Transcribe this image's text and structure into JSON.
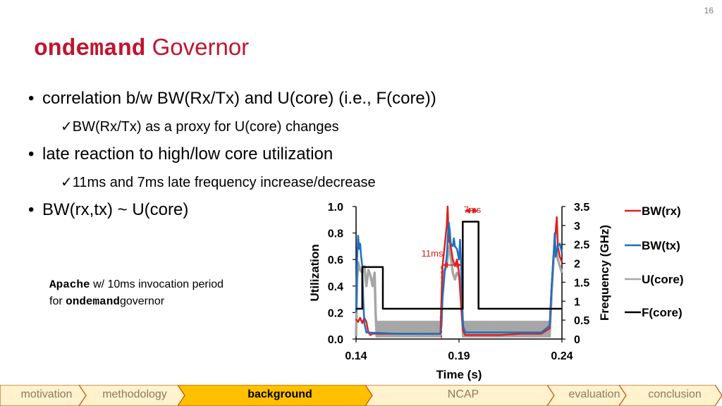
{
  "page_number": "16",
  "title": {
    "mono_part": "ondemand",
    "rest": "Governor",
    "color": "#c0152f"
  },
  "bullets": [
    {
      "dot": "•",
      "text": "correlation b/w BW(Rx/Tx) and U(core) (i.e., F(core))",
      "sub": {
        "mark": "✓",
        "text": "BW(Rx/Tx) as a proxy for U(core) changes"
      }
    },
    {
      "dot": "•",
      "text": "late reaction to high/low core utilization",
      "sub": {
        "mark": "✓",
        "text": "11ms and 7ms late frequency increase/decrease"
      }
    },
    {
      "dot": "•",
      "text": "BW(rx,tx) ~ U(core)"
    }
  ],
  "note": {
    "line1_mono": "Apache",
    "line1_rest": "w/ 10ms invocation period",
    "line2_pre": "for",
    "line2_mono": "ondemand",
    "line2_post": "governor"
  },
  "chart_data": {
    "type": "line",
    "xlabel": "Time (s)",
    "ylabel_left": "Utilization",
    "ylabel_right": "Frequency (GHz)",
    "xlim": [
      0.14,
      0.24
    ],
    "x_ticks": [
      "0.14",
      "0.19",
      "0.24"
    ],
    "ylim_left": [
      0,
      1.0
    ],
    "y_ticks_left": [
      "0.0",
      "0.2",
      "0.4",
      "0.6",
      "0.8",
      "1.0"
    ],
    "ylim_right": [
      0,
      3.5
    ],
    "y_ticks_right": [
      "0",
      "0.5",
      "1",
      "1.5",
      "2",
      "2.5",
      "3",
      "3.5"
    ],
    "annotations": [
      {
        "text": "11ms",
        "color": "#e0201b",
        "from_x": 0.1815,
        "to_x": 0.1918
      },
      {
        "text": "7ms",
        "color": "#e0201b",
        "from_x": 0.1925,
        "to_x": 0.1995
      }
    ],
    "series": [
      {
        "name": "BW(rx)",
        "color": "#e0201b",
        "axis": "left",
        "points": [
          [
            0.14,
            0.15
          ],
          [
            0.141,
            0.13
          ],
          [
            0.142,
            0.16
          ],
          [
            0.143,
            0.12
          ],
          [
            0.144,
            0.16
          ],
          [
            0.145,
            0.13
          ],
          [
            0.146,
            0.05
          ],
          [
            0.147,
            0.03
          ],
          [
            0.148,
            0.04
          ],
          [
            0.16,
            0.04
          ],
          [
            0.17,
            0.04
          ],
          [
            0.181,
            0.04
          ],
          [
            0.1815,
            0.3
          ],
          [
            0.182,
            0.55
          ],
          [
            0.183,
            0.7
          ],
          [
            0.184,
            0.85
          ],
          [
            0.1845,
            1.0
          ],
          [
            0.185,
            0.75
          ],
          [
            0.186,
            0.7
          ],
          [
            0.187,
            0.6
          ],
          [
            0.188,
            0.55
          ],
          [
            0.189,
            0.6
          ],
          [
            0.19,
            0.5
          ],
          [
            0.191,
            0.25
          ],
          [
            0.192,
            0.06
          ],
          [
            0.193,
            0.03
          ],
          [
            0.2,
            0.03
          ],
          [
            0.21,
            0.03
          ],
          [
            0.22,
            0.04
          ],
          [
            0.23,
            0.04
          ],
          [
            0.234,
            0.08
          ],
          [
            0.235,
            0.4
          ],
          [
            0.236,
            0.65
          ],
          [
            0.237,
            0.82
          ],
          [
            0.2375,
            0.92
          ],
          [
            0.238,
            0.7
          ],
          [
            0.239,
            0.62
          ],
          [
            0.24,
            0.58
          ]
        ]
      },
      {
        "name": "BW(tx)",
        "color": "#1f6fbf",
        "axis": "left",
        "points": [
          [
            0.14,
            0.2
          ],
          [
            0.1405,
            0.6
          ],
          [
            0.141,
            0.78
          ],
          [
            0.1415,
            0.68
          ],
          [
            0.142,
            0.72
          ],
          [
            0.1425,
            0.62
          ],
          [
            0.143,
            0.55
          ],
          [
            0.1435,
            0.3
          ],
          [
            0.144,
            0.12
          ],
          [
            0.145,
            0.05
          ],
          [
            0.16,
            0.04
          ],
          [
            0.17,
            0.04
          ],
          [
            0.181,
            0.04
          ],
          [
            0.1815,
            0.1
          ],
          [
            0.182,
            0.3
          ],
          [
            0.183,
            0.5
          ],
          [
            0.184,
            0.62
          ],
          [
            0.185,
            0.88
          ],
          [
            0.1855,
            0.82
          ],
          [
            0.186,
            0.72
          ],
          [
            0.187,
            0.7
          ],
          [
            0.1875,
            0.76
          ],
          [
            0.188,
            0.7
          ],
          [
            0.189,
            0.68
          ],
          [
            0.19,
            0.6
          ],
          [
            0.1905,
            0.75
          ],
          [
            0.191,
            0.56
          ],
          [
            0.1915,
            0.3
          ],
          [
            0.192,
            0.1
          ],
          [
            0.193,
            0.05
          ],
          [
            0.2,
            0.05
          ],
          [
            0.21,
            0.05
          ],
          [
            0.22,
            0.05
          ],
          [
            0.23,
            0.05
          ],
          [
            0.234,
            0.1
          ],
          [
            0.235,
            0.4
          ],
          [
            0.236,
            0.65
          ],
          [
            0.2365,
            0.8
          ],
          [
            0.237,
            0.62
          ],
          [
            0.238,
            0.7
          ],
          [
            0.239,
            0.72
          ],
          [
            0.24,
            0.65
          ]
        ]
      },
      {
        "name": "U(core)",
        "color": "#a6a6a6",
        "axis": "left",
        "points": [
          [
            0.14,
            0.02
          ],
          [
            0.1405,
            0.45
          ],
          [
            0.141,
            0.58
          ],
          [
            0.142,
            0.52
          ],
          [
            0.143,
            0.5
          ],
          [
            0.144,
            0.55
          ],
          [
            0.145,
            0.4
          ],
          [
            0.146,
            0.52
          ],
          [
            0.147,
            0.48
          ],
          [
            0.148,
            0.4
          ],
          [
            0.149,
            0.5
          ],
          [
            0.1495,
            0.2
          ],
          [
            0.15,
            0.02
          ],
          [
            0.1505,
            0.13
          ],
          [
            0.151,
            0.02
          ],
          [
            0.1515,
            0.13
          ],
          [
            0.152,
            0.02
          ],
          [
            0.1525,
            0.13
          ],
          [
            0.153,
            0.02
          ],
          [
            0.1535,
            0.13
          ],
          [
            0.154,
            0.02
          ],
          [
            0.1545,
            0.13
          ],
          [
            0.155,
            0.02
          ],
          [
            0.1555,
            0.13
          ],
          [
            0.156,
            0.02
          ],
          [
            0.1565,
            0.13
          ],
          [
            0.157,
            0.02
          ],
          [
            0.1575,
            0.13
          ],
          [
            0.158,
            0.02
          ],
          [
            0.1585,
            0.13
          ],
          [
            0.159,
            0.02
          ],
          [
            0.1595,
            0.13
          ],
          [
            0.16,
            0.02
          ],
          [
            0.1605,
            0.13
          ],
          [
            0.161,
            0.02
          ],
          [
            0.1615,
            0.13
          ],
          [
            0.162,
            0.02
          ],
          [
            0.1625,
            0.13
          ],
          [
            0.163,
            0.02
          ],
          [
            0.1635,
            0.13
          ],
          [
            0.164,
            0.02
          ],
          [
            0.1645,
            0.13
          ],
          [
            0.165,
            0.02
          ],
          [
            0.1655,
            0.13
          ],
          [
            0.166,
            0.02
          ],
          [
            0.1665,
            0.13
          ],
          [
            0.167,
            0.02
          ],
          [
            0.1675,
            0.13
          ],
          [
            0.168,
            0.02
          ],
          [
            0.1685,
            0.13
          ],
          [
            0.169,
            0.02
          ],
          [
            0.1695,
            0.13
          ],
          [
            0.17,
            0.02
          ],
          [
            0.1705,
            0.13
          ],
          [
            0.171,
            0.02
          ],
          [
            0.1715,
            0.13
          ],
          [
            0.172,
            0.02
          ],
          [
            0.1725,
            0.13
          ],
          [
            0.173,
            0.02
          ],
          [
            0.1735,
            0.13
          ],
          [
            0.174,
            0.02
          ],
          [
            0.1745,
            0.13
          ],
          [
            0.175,
            0.02
          ],
          [
            0.1755,
            0.13
          ],
          [
            0.176,
            0.02
          ],
          [
            0.1765,
            0.13
          ],
          [
            0.177,
            0.02
          ],
          [
            0.1775,
            0.13
          ],
          [
            0.178,
            0.02
          ],
          [
            0.1785,
            0.13
          ],
          [
            0.179,
            0.02
          ],
          [
            0.1795,
            0.13
          ],
          [
            0.18,
            0.02
          ],
          [
            0.1805,
            0.13
          ],
          [
            0.181,
            0.02
          ],
          [
            0.1815,
            0.25
          ],
          [
            0.182,
            0.45
          ],
          [
            0.183,
            0.52
          ],
          [
            0.184,
            0.55
          ],
          [
            0.185,
            0.7
          ],
          [
            0.186,
            0.62
          ],
          [
            0.187,
            0.5
          ],
          [
            0.188,
            0.45
          ],
          [
            0.189,
            0.5
          ],
          [
            0.19,
            0.48
          ],
          [
            0.191,
            0.4
          ],
          [
            0.1915,
            0.2
          ],
          [
            0.192,
            0.02
          ],
          [
            0.1925,
            0.13
          ],
          [
            0.193,
            0.02
          ],
          [
            0.1935,
            0.13
          ],
          [
            0.194,
            0.02
          ],
          [
            0.1945,
            0.13
          ],
          [
            0.195,
            0.02
          ],
          [
            0.1955,
            0.13
          ],
          [
            0.196,
            0.02
          ],
          [
            0.1965,
            0.13
          ],
          [
            0.197,
            0.02
          ],
          [
            0.1975,
            0.13
          ],
          [
            0.198,
            0.02
          ],
          [
            0.1985,
            0.13
          ],
          [
            0.199,
            0.02
          ],
          [
            0.1995,
            0.13
          ],
          [
            0.2,
            0.02
          ],
          [
            0.2005,
            0.13
          ],
          [
            0.201,
            0.02
          ],
          [
            0.2015,
            0.13
          ],
          [
            0.202,
            0.02
          ],
          [
            0.2025,
            0.13
          ],
          [
            0.203,
            0.02
          ],
          [
            0.2035,
            0.13
          ],
          [
            0.204,
            0.02
          ],
          [
            0.2045,
            0.13
          ],
          [
            0.205,
            0.02
          ],
          [
            0.2055,
            0.13
          ],
          [
            0.206,
            0.02
          ],
          [
            0.2065,
            0.13
          ],
          [
            0.207,
            0.02
          ],
          [
            0.2075,
            0.13
          ],
          [
            0.208,
            0.02
          ],
          [
            0.2085,
            0.13
          ],
          [
            0.209,
            0.02
          ],
          [
            0.2095,
            0.13
          ],
          [
            0.21,
            0.02
          ],
          [
            0.2105,
            0.13
          ],
          [
            0.211,
            0.02
          ],
          [
            0.2115,
            0.13
          ],
          [
            0.212,
            0.02
          ],
          [
            0.2125,
            0.13
          ],
          [
            0.213,
            0.02
          ],
          [
            0.2135,
            0.13
          ],
          [
            0.214,
            0.02
          ],
          [
            0.2145,
            0.13
          ],
          [
            0.215,
            0.02
          ],
          [
            0.2155,
            0.13
          ],
          [
            0.216,
            0.02
          ],
          [
            0.2165,
            0.13
          ],
          [
            0.217,
            0.02
          ],
          [
            0.2175,
            0.13
          ],
          [
            0.218,
            0.02
          ],
          [
            0.2185,
            0.13
          ],
          [
            0.219,
            0.02
          ],
          [
            0.2195,
            0.13
          ],
          [
            0.22,
            0.02
          ],
          [
            0.2205,
            0.13
          ],
          [
            0.221,
            0.02
          ],
          [
            0.2215,
            0.13
          ],
          [
            0.222,
            0.02
          ],
          [
            0.2225,
            0.13
          ],
          [
            0.223,
            0.02
          ],
          [
            0.2235,
            0.13
          ],
          [
            0.224,
            0.02
          ],
          [
            0.2245,
            0.13
          ],
          [
            0.225,
            0.02
          ],
          [
            0.2255,
            0.13
          ],
          [
            0.226,
            0.02
          ],
          [
            0.2265,
            0.13
          ],
          [
            0.227,
            0.02
          ],
          [
            0.2275,
            0.13
          ],
          [
            0.228,
            0.02
          ],
          [
            0.2285,
            0.13
          ],
          [
            0.229,
            0.02
          ],
          [
            0.2295,
            0.13
          ],
          [
            0.23,
            0.02
          ],
          [
            0.2305,
            0.13
          ],
          [
            0.231,
            0.02
          ],
          [
            0.2315,
            0.13
          ],
          [
            0.232,
            0.02
          ],
          [
            0.2325,
            0.13
          ],
          [
            0.233,
            0.02
          ],
          [
            0.2335,
            0.13
          ],
          [
            0.234,
            0.02
          ],
          [
            0.235,
            0.35
          ],
          [
            0.236,
            0.62
          ],
          [
            0.237,
            0.7
          ],
          [
            0.238,
            0.6
          ],
          [
            0.239,
            0.55
          ],
          [
            0.24,
            0.5
          ]
        ]
      },
      {
        "name": "F(core)",
        "color": "#000000",
        "axis": "right",
        "points": [
          [
            0.14,
            0.8
          ],
          [
            0.143,
            0.8
          ],
          [
            0.143,
            1.9
          ],
          [
            0.153,
            1.9
          ],
          [
            0.153,
            0.8
          ],
          [
            0.1918,
            0.8
          ],
          [
            0.1918,
            3.1
          ],
          [
            0.1995,
            3.1
          ],
          [
            0.1995,
            0.8
          ],
          [
            0.24,
            0.8
          ]
        ]
      }
    ]
  },
  "nav": {
    "items": [
      {
        "label": "motivation",
        "active": false
      },
      {
        "label": "methodology",
        "active": false
      },
      {
        "label": "background",
        "active": true
      },
      {
        "label": "NCAP",
        "active": false
      },
      {
        "label": "evaluation",
        "active": false
      },
      {
        "label": "conclusion",
        "active": false
      }
    ],
    "active_fill": "#ffc000",
    "inactive_fill": "#fff2cc",
    "border_color": "#c55a11",
    "inactive_text_color": "#8c7a63"
  }
}
